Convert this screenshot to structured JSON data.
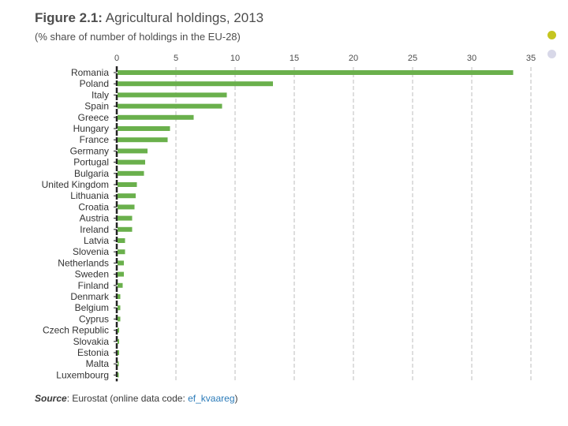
{
  "figure": {
    "number": "Figure 2.1:",
    "title": "Agricultural holdings, 2013",
    "subtitle": "(% share of number of holdings in the EU-28)"
  },
  "source": {
    "label": "Source",
    "text": ": Eurostat (online data code: ",
    "code": "ef_kvaareg",
    "close": ")"
  },
  "colors": {
    "bar": "#6ab04c",
    "grid": "#bdbdbd",
    "axis": "#222222",
    "accent_yellow": "#c5c520",
    "accent_gray": "#d8d8e8"
  },
  "chart_data": {
    "type": "bar",
    "orientation": "horizontal",
    "title": "Agricultural holdings, 2013",
    "subtitle": "(% share of number of holdings in the EU-28)",
    "xlabel": "",
    "ylabel": "",
    "xlim": [
      0,
      35
    ],
    "xticks": [
      0,
      5,
      10,
      15,
      20,
      25,
      30,
      35
    ],
    "grid": true,
    "legend": "none",
    "categories": [
      "Romania",
      "Poland",
      "Italy",
      "Spain",
      "Greece",
      "Hungary",
      "France",
      "Germany",
      "Portugal",
      "Bulgaria",
      "United Kingdom",
      "Lithuania",
      "Croatia",
      "Austria",
      "Ireland",
      "Latvia",
      "Slovenia",
      "Netherlands",
      "Sweden",
      "Finland",
      "Denmark",
      "Belgium",
      "Cyprus",
      "Czech Republic",
      "Slovakia",
      "Estonia",
      "Malta",
      "Luxembourg"
    ],
    "values": [
      33.5,
      13.2,
      9.3,
      8.9,
      6.5,
      4.5,
      4.3,
      2.6,
      2.4,
      2.3,
      1.7,
      1.6,
      1.5,
      1.3,
      1.3,
      0.7,
      0.7,
      0.6,
      0.6,
      0.5,
      0.3,
      0.3,
      0.3,
      0.2,
      0.2,
      0.2,
      0.1,
      0.1
    ]
  }
}
